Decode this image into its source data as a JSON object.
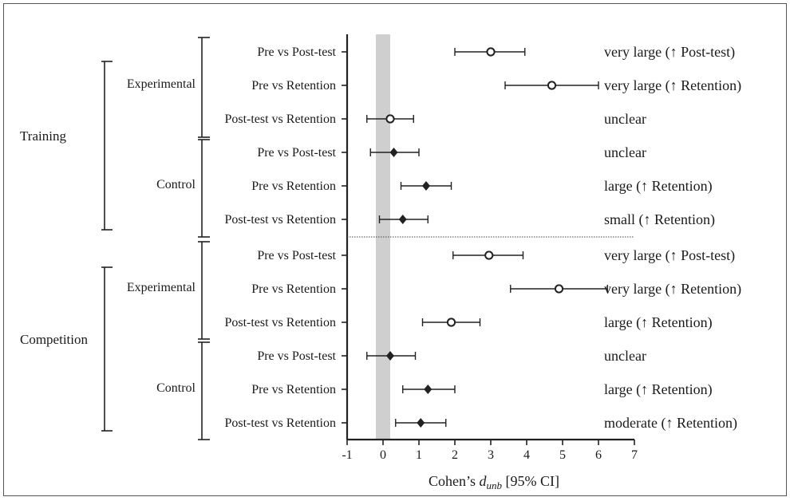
{
  "chart_data": {
    "type": "scatter",
    "subtype": "forest-plot",
    "xlabel_prefix": "Cohen’s ",
    "xlabel_symbol": "d",
    "xlabel_subscript": "unb",
    "xlabel_suffix": " [95% CI]",
    "xlim": [
      -1,
      7
    ],
    "x_ticks": [
      -1,
      0,
      1,
      2,
      3,
      4,
      5,
      6,
      7
    ],
    "shaded_band": [
      -0.2,
      0.2
    ],
    "marker_legend": {
      "Experimental": "open-circle",
      "Control": "filled-diamond"
    },
    "sections": [
      {
        "name": "Training",
        "groups": [
          {
            "name": "Experimental",
            "marker": "open-circle",
            "rows": [
              {
                "label": "Pre vs Post-test",
                "d": 3.0,
                "ci": [
                  2.0,
                  3.95
                ],
                "interpretation": "very large (↑ Post-test)"
              },
              {
                "label": "Pre vs Retention",
                "d": 4.7,
                "ci": [
                  3.4,
                  6.0
                ],
                "interpretation": "very large (↑ Retention)"
              },
              {
                "label": "Post-test vs Retention",
                "d": 0.2,
                "ci": [
                  -0.45,
                  0.85
                ],
                "interpretation": "unclear"
              }
            ]
          },
          {
            "name": "Control",
            "marker": "filled-diamond",
            "rows": [
              {
                "label": "Pre vs Post-test",
                "d": 0.3,
                "ci": [
                  -0.35,
                  1.0
                ],
                "interpretation": "unclear"
              },
              {
                "label": "Pre vs Retention",
                "d": 1.2,
                "ci": [
                  0.5,
                  1.9
                ],
                "interpretation": "large (↑ Retention)"
              },
              {
                "label": "Post-test vs Retention",
                "d": 0.55,
                "ci": [
                  -0.1,
                  1.25
                ],
                "interpretation": "small (↑ Retention)"
              }
            ]
          }
        ]
      },
      {
        "name": "Competition",
        "groups": [
          {
            "name": "Experimental",
            "marker": "open-circle",
            "rows": [
              {
                "label": "Pre vs Post-test",
                "d": 2.95,
                "ci": [
                  1.95,
                  3.9
                ],
                "interpretation": "very large (↑ Post-test)"
              },
              {
                "label": "Pre vs Retention",
                "d": 4.9,
                "ci": [
                  3.55,
                  6.25
                ],
                "interpretation": "very large (↑ Retention)"
              },
              {
                "label": "Post-test vs Retention",
                "d": 1.9,
                "ci": [
                  1.1,
                  2.7
                ],
                "interpretation": "large (↑ Retention)"
              }
            ]
          },
          {
            "name": "Control",
            "marker": "filled-diamond",
            "rows": [
              {
                "label": "Pre vs Post-test",
                "d": 0.2,
                "ci": [
                  -0.45,
                  0.9
                ],
                "interpretation": "unclear"
              },
              {
                "label": "Pre vs Retention",
                "d": 1.25,
                "ci": [
                  0.55,
                  2.0
                ],
                "interpretation": "large (↑ Retention)"
              },
              {
                "label": "Post-test vs Retention",
                "d": 1.05,
                "ci": [
                  0.35,
                  1.75
                ],
                "interpretation": "moderate (↑ Retention)"
              }
            ]
          }
        ]
      }
    ]
  }
}
